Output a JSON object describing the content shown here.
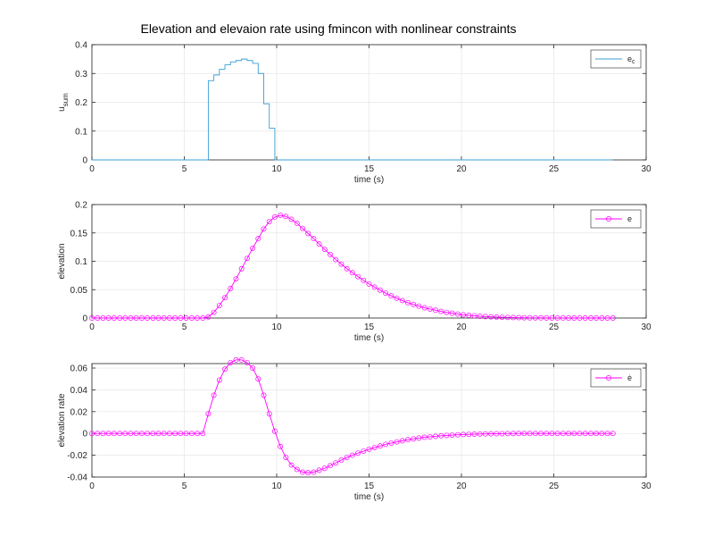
{
  "figure": {
    "title": "Elevation and elevaion rate using fmincon with nonlinear constraints",
    "background": "#ffffff"
  },
  "chart_data": [
    {
      "type": "line",
      "style": "stairs",
      "title": "Elevation and elevaion rate using fmincon with nonlinear constraints",
      "xlabel": "time (s)",
      "ylabel": "u",
      "ylabel_sub": "sum",
      "xlim": [
        0,
        30
      ],
      "ylim": [
        0,
        0.4
      ],
      "xticks": [
        0,
        5,
        10,
        15,
        20,
        25,
        30
      ],
      "yticks": [
        0,
        0.1,
        0.2,
        0.3,
        0.4
      ],
      "ytick_labels": [
        "0",
        "0.1",
        "0.2",
        "0.3",
        "0.4"
      ],
      "grid": true,
      "legend": {
        "position": "northeast",
        "entries": [
          {
            "label": "e",
            "sub": "c",
            "color": "#3b9fd4",
            "marker": "none"
          }
        ]
      },
      "series": [
        {
          "name": "e_c",
          "color": "#3b9fd4",
          "x": [
            0,
            6.3,
            6.6,
            6.9,
            7.2,
            7.5,
            7.8,
            8.1,
            8.4,
            8.7,
            9.0,
            9.3,
            9.6,
            9.9,
            28.2
          ],
          "values": [
            0,
            0.275,
            0.295,
            0.315,
            0.33,
            0.34,
            0.345,
            0.35,
            0.345,
            0.335,
            0.3,
            0.195,
            0.11,
            0,
            0
          ]
        }
      ]
    },
    {
      "type": "line",
      "title": "",
      "xlabel": "time (s)",
      "ylabel": "elevation",
      "xlim": [
        0,
        30
      ],
      "ylim": [
        0,
        0.2
      ],
      "xticks": [
        0,
        5,
        10,
        15,
        20,
        25,
        30
      ],
      "yticks": [
        0,
        0.05,
        0.1,
        0.15,
        0.2
      ],
      "ytick_labels": [
        "0",
        "0.05",
        "0.1",
        "0.15",
        "0.2"
      ],
      "grid": true,
      "legend": {
        "position": "northeast",
        "entries": [
          {
            "label": "e",
            "color": "#ff00ff",
            "marker": "o"
          }
        ]
      },
      "series": [
        {
          "name": "e",
          "color": "#ff00ff",
          "marker": "circle",
          "x": [
            0,
            6.0,
            6.3,
            6.6,
            6.9,
            7.2,
            7.5,
            7.8,
            8.1,
            8.4,
            8.7,
            9.0,
            9.3,
            9.6,
            9.9,
            10.2,
            10.5,
            10.8,
            11.1,
            11.4,
            11.7,
            12.0,
            12.6,
            13.2,
            13.8,
            14.4,
            15.0,
            16.0,
            17.0,
            18.0,
            19.0,
            20.0,
            21.0,
            22.0,
            23.0,
            24.0,
            25.0,
            26.0,
            28.2
          ],
          "values": [
            0,
            0,
            0.002,
            0.01,
            0.022,
            0.036,
            0.052,
            0.069,
            0.087,
            0.105,
            0.123,
            0.14,
            0.157,
            0.17,
            0.178,
            0.181,
            0.179,
            0.174,
            0.167,
            0.158,
            0.149,
            0.14,
            0.121,
            0.103,
            0.087,
            0.073,
            0.06,
            0.042,
            0.028,
            0.018,
            0.011,
            0.006,
            0.003,
            0.0015,
            0.0007,
            0.0003,
            0.0001,
            0,
            0
          ]
        }
      ]
    },
    {
      "type": "line",
      "title": "",
      "xlabel": "time (s)",
      "ylabel": "elevation rate",
      "xlim": [
        0,
        30
      ],
      "ylim": [
        -0.04,
        0.07
      ],
      "xticks": [
        0,
        5,
        10,
        15,
        20,
        25,
        30
      ],
      "yticks": [
        -0.04,
        -0.02,
        0,
        0.02,
        0.04,
        0.06
      ],
      "ytick_labels": [
        "-0.04",
        "-0.02",
        "0",
        "0.02",
        "0.04",
        "0.06"
      ],
      "grid": true,
      "legend": {
        "position": "northeast",
        "entries": [
          {
            "label": "ė",
            "color": "#ff00ff",
            "marker": "o"
          }
        ]
      },
      "series": [
        {
          "name": "e_dot",
          "color": "#ff00ff",
          "marker": "circle",
          "x": [
            0,
            6.0,
            6.3,
            6.6,
            6.9,
            7.2,
            7.5,
            7.8,
            8.1,
            8.4,
            8.7,
            9.0,
            9.3,
            9.6,
            9.9,
            10.2,
            10.5,
            10.8,
            11.1,
            11.4,
            11.7,
            12.0,
            12.6,
            13.2,
            13.8,
            14.4,
            15.0,
            16.0,
            17.0,
            18.0,
            19.0,
            20.0,
            21.0,
            22.0,
            23.0,
            28.2
          ],
          "values": [
            0,
            0,
            0.018,
            0.035,
            0.049,
            0.059,
            0.065,
            0.0675,
            0.0675,
            0.065,
            0.06,
            0.05,
            0.035,
            0.018,
            0.002,
            -0.012,
            -0.022,
            -0.029,
            -0.033,
            -0.0355,
            -0.036,
            -0.0355,
            -0.032,
            -0.027,
            -0.022,
            -0.018,
            -0.0145,
            -0.0095,
            -0.006,
            -0.0035,
            -0.002,
            -0.001,
            -0.0005,
            -0.0002,
            0,
            0
          ]
        }
      ]
    }
  ]
}
